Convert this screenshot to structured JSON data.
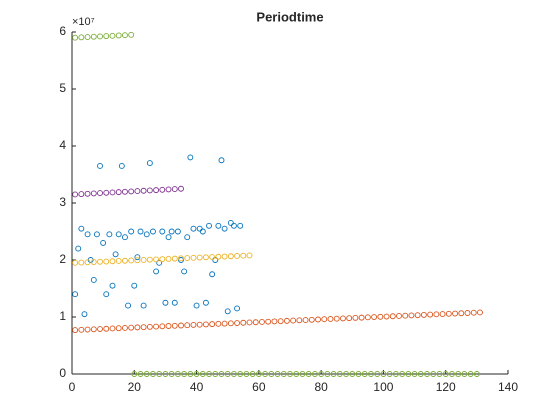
{
  "chart_data": {
    "type": "scatter",
    "title": "Periodtime",
    "y_exponent_label": "×10⁷",
    "xlim": [
      0,
      140
    ],
    "xticks": [
      0,
      20,
      40,
      60,
      80,
      100,
      120,
      140
    ],
    "ylim": [
      0,
      6
    ],
    "yticks": [
      0,
      1,
      2,
      3,
      4,
      5,
      6
    ],
    "series": [
      {
        "color": "#0072BD",
        "x": [
          1,
          2,
          3,
          4,
          5,
          6,
          7,
          8,
          9,
          10,
          11,
          12,
          13,
          14,
          15,
          16,
          17,
          18,
          19,
          20,
          21,
          22,
          23,
          24,
          25,
          26,
          27,
          28,
          29,
          30,
          31,
          32,
          33,
          34,
          35,
          36,
          37,
          38,
          39,
          40,
          41,
          42,
          43,
          44,
          45,
          46,
          47,
          48,
          49,
          50,
          51,
          52,
          53,
          54
        ],
        "values": [
          1.4,
          2.2,
          2.55,
          1.05,
          2.45,
          2.0,
          1.65,
          2.45,
          3.65,
          2.3,
          1.4,
          2.45,
          1.55,
          2.1,
          2.45,
          3.65,
          2.4,
          1.2,
          2.5,
          1.55,
          2.05,
          2.5,
          1.2,
          2.45,
          3.7,
          2.5,
          1.8,
          1.95,
          2.5,
          1.25,
          2.4,
          2.5,
          1.25,
          2.5,
          2.0,
          1.8,
          2.4,
          3.8,
          2.55,
          1.2,
          2.55,
          2.5,
          1.25,
          2.6,
          1.75,
          2.0,
          2.6,
          3.75,
          2.55,
          1.1,
          2.65,
          2.6,
          1.15,
          2.6
        ]
      },
      {
        "color": "#D95319",
        "x": [
          1,
          3,
          5,
          7,
          9,
          11,
          13,
          15,
          17,
          19,
          21,
          23,
          25,
          27,
          29,
          31,
          33,
          35,
          37,
          39,
          41,
          43,
          45,
          47,
          49,
          51,
          53,
          55,
          57,
          59,
          61,
          63,
          65,
          67,
          69,
          71,
          73,
          75,
          77,
          79,
          81,
          83,
          85,
          87,
          89,
          91,
          93,
          95,
          97,
          99,
          101,
          103,
          105,
          107,
          109,
          111,
          113,
          115,
          117,
          119,
          121,
          123,
          125,
          127,
          129,
          131
        ],
        "values": [
          0.77,
          0.775,
          0.78,
          0.784,
          0.789,
          0.794,
          0.799,
          0.803,
          0.808,
          0.813,
          0.818,
          0.822,
          0.827,
          0.832,
          0.837,
          0.842,
          0.846,
          0.851,
          0.856,
          0.861,
          0.865,
          0.87,
          0.875,
          0.88,
          0.884,
          0.889,
          0.894,
          0.899,
          0.904,
          0.908,
          0.913,
          0.918,
          0.923,
          0.927,
          0.932,
          0.937,
          0.942,
          0.946,
          0.951,
          0.956,
          0.961,
          0.966,
          0.97,
          0.975,
          0.98,
          0.985,
          0.989,
          0.994,
          0.999,
          1.004,
          1.008,
          1.013,
          1.018,
          1.023,
          1.028,
          1.032,
          1.037,
          1.042,
          1.047,
          1.051,
          1.056,
          1.061,
          1.066,
          1.07,
          1.075,
          1.08
        ]
      },
      {
        "color": "#EDB120",
        "x": [
          1,
          3,
          5,
          7,
          9,
          11,
          13,
          15,
          17,
          19,
          21,
          23,
          25,
          27,
          29,
          31,
          33,
          35,
          37,
          39,
          41,
          43,
          45,
          47,
          49,
          51,
          53,
          55,
          57
        ],
        "values": [
          1.95,
          1.955,
          1.959,
          1.964,
          1.969,
          1.973,
          1.978,
          1.983,
          1.987,
          1.992,
          1.996,
          2.001,
          2.006,
          2.01,
          2.015,
          2.02,
          2.024,
          2.029,
          2.034,
          2.038,
          2.043,
          2.048,
          2.052,
          2.057,
          2.061,
          2.066,
          2.071,
          2.075,
          2.08
        ]
      },
      {
        "color": "#7E2F8E",
        "x": [
          1,
          3,
          5,
          7,
          9,
          11,
          13,
          15,
          17,
          19,
          21,
          23,
          25,
          27,
          29,
          31,
          33,
          35
        ],
        "values": [
          3.15,
          3.156,
          3.162,
          3.168,
          3.174,
          3.179,
          3.185,
          3.191,
          3.197,
          3.203,
          3.209,
          3.215,
          3.221,
          3.226,
          3.232,
          3.238,
          3.244,
          3.25
        ]
      },
      {
        "color": "#77AC30",
        "x": [
          1,
          3,
          5,
          7,
          9,
          11,
          13,
          15,
          17,
          19
        ],
        "values": [
          5.9,
          5.906,
          5.911,
          5.917,
          5.922,
          5.928,
          5.933,
          5.939,
          5.944,
          5.95
        ]
      },
      {
        "color": "#77AC30",
        "x": [
          20,
          22,
          24,
          26,
          28,
          30,
          32,
          34,
          36,
          38,
          40,
          42,
          44,
          46,
          48,
          50,
          52,
          54,
          56,
          58,
          60,
          62,
          64,
          66,
          68,
          70,
          72,
          74,
          76,
          78,
          80,
          82,
          84,
          86,
          88,
          90,
          92,
          94,
          96,
          98,
          100,
          102,
          104,
          106,
          108,
          110,
          112,
          114,
          116,
          118,
          120,
          122,
          124,
          126,
          128,
          130
        ],
        "values": [
          0,
          0,
          0,
          0,
          0,
          0,
          0,
          0,
          0,
          0,
          0,
          0,
          0,
          0,
          0,
          0,
          0,
          0,
          0,
          0,
          0,
          0,
          0,
          0,
          0,
          0,
          0,
          0,
          0,
          0,
          0,
          0,
          0,
          0,
          0,
          0,
          0,
          0,
          0,
          0,
          0,
          0,
          0,
          0,
          0,
          0,
          0,
          0,
          0,
          0,
          0,
          0,
          0,
          0,
          0,
          0
        ]
      }
    ]
  }
}
